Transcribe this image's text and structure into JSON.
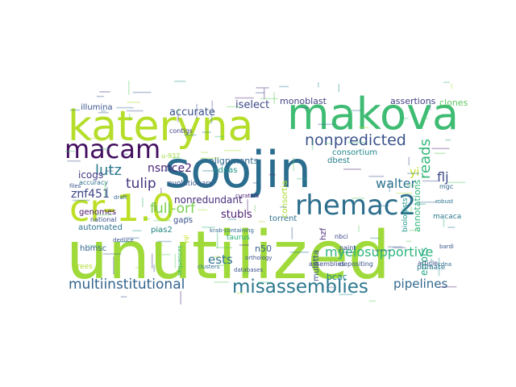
{
  "cloud": {
    "words": [
      {
        "text": "unutilized",
        "color": "#9fda3a"
      },
      {
        "text": "soojin",
        "color": "#2b6d8e"
      },
      {
        "text": "kateryna",
        "color": "#b5de2b"
      },
      {
        "text": "makova",
        "color": "#3fbc73"
      },
      {
        "text": "cr-1.0",
        "color": "#bddf26"
      },
      {
        "text": "macam",
        "color": "#440f5f"
      },
      {
        "text": "rhemac2",
        "color": "#2e6f8e"
      },
      {
        "text": "misassemblies",
        "color": "#2b788e"
      },
      {
        "text": "nonpredicted",
        "color": "#3b528b"
      },
      {
        "text": "multiinstitutional",
        "color": "#33638d"
      },
      {
        "text": "myelosupportive",
        "color": "#2fb47c"
      },
      {
        "text": "reads",
        "color": "#35b779"
      },
      {
        "text": "pipelines",
        "color": "#31688e"
      },
      {
        "text": "lutz",
        "color": "#2a788e"
      },
      {
        "text": "tulip",
        "color": "#46337e"
      },
      {
        "text": "full-orf",
        "color": "#7ad151"
      },
      {
        "text": "walter",
        "color": "#2c728e"
      },
      {
        "text": "ests",
        "color": "#2d708e"
      },
      {
        "text": "nonredundant",
        "color": "#472d7b"
      },
      {
        "text": "accurate",
        "color": "#3b528b"
      },
      {
        "text": "iselect",
        "color": "#3e4a89"
      },
      {
        "text": "znf451",
        "color": "#3f4788"
      },
      {
        "text": "nsmce2",
        "color": "#482475"
      },
      {
        "text": "stubls",
        "color": "#481b6d"
      },
      {
        "text": "monoblast",
        "color": "#424086"
      },
      {
        "text": "assertions",
        "color": "#433e85"
      },
      {
        "text": "clones",
        "color": "#5ec962"
      },
      {
        "text": "consortium",
        "color": "#24878e"
      },
      {
        "text": "alignments",
        "color": "#31688e"
      },
      {
        "text": "illumina",
        "color": "#3a548c"
      },
      {
        "text": "icogs",
        "color": "#443983"
      },
      {
        "text": "genomes",
        "color": "#471365"
      },
      {
        "text": "automated",
        "color": "#2c728e"
      },
      {
        "text": "pias2",
        "color": "#26828e"
      },
      {
        "text": "errors",
        "color": "#22a884"
      },
      {
        "text": "annotations",
        "color": "#2fb47c"
      },
      {
        "text": "flj",
        "color": "#3e4989"
      },
      {
        "text": "n50",
        "color": "#355f8d"
      },
      {
        "text": "bcac",
        "color": "#25838e"
      },
      {
        "text": "mulatta",
        "color": "#3b528b"
      },
      {
        "text": "gaps",
        "color": "#3b528b"
      },
      {
        "text": "torrent",
        "color": "#2d708e"
      },
      {
        "text": "dbest",
        "color": "#277f8e"
      },
      {
        "text": "evolutionary",
        "color": "#39568c"
      },
      {
        "text": "cdnas",
        "color": "#20928c"
      },
      {
        "text": "taurus",
        "color": "#29af7f"
      },
      {
        "text": "hbmsc",
        "color": "#32648e"
      },
      {
        "text": "contigs",
        "color": "#414487"
      },
      {
        "text": "accuracy",
        "color": "#2d708e"
      },
      {
        "text": "national",
        "color": "#3b528b"
      },
      {
        "text": "consortia",
        "color": "#addc30"
      },
      {
        "text": "biologists",
        "color": "#1f968b"
      },
      {
        "text": "macaca",
        "color": "#2a788e"
      },
      {
        "text": "nbci",
        "color": "#3e4a89"
      },
      {
        "text": "hzf",
        "color": "#482878"
      },
      {
        "text": "primate",
        "color": "#2c728e"
      },
      {
        "text": "article",
        "color": "#3b528b"
      },
      {
        "text": "assemblies",
        "color": "#3e4989"
      },
      {
        "text": "paint",
        "color": "#3e4989"
      },
      {
        "text": "depositing",
        "color": "#3b528b"
      },
      {
        "text": "u-937",
        "color": "#9fda3a"
      },
      {
        "text": "curators",
        "color": "#482475"
      },
      {
        "text": "deduce",
        "color": "#3b528b"
      },
      {
        "text": "clusters",
        "color": "#2d708e"
      },
      {
        "text": "databases",
        "color": "#3b528b"
      },
      {
        "text": "orthology",
        "color": "#3b528b"
      },
      {
        "text": "trees",
        "color": "#addc30"
      },
      {
        "text": "krab-containing",
        "color": "#31688e"
      },
      {
        "text": "cdna",
        "color": "#31688e"
      },
      {
        "text": "sequences",
        "color": "#2fb47c"
      },
      {
        "text": "ygl",
        "color": "#c8e020"
      },
      {
        "text": "draft",
        "color": "#31688e"
      },
      {
        "text": "files",
        "color": "#3b528b"
      },
      {
        "text": "mgc",
        "color": "#31688e"
      },
      {
        "text": "bardi",
        "color": "#3b528b"
      },
      {
        "text": "yi",
        "color": "#c2df23"
      },
      {
        "text": "robust",
        "color": "#2c728e"
      }
    ]
  }
}
